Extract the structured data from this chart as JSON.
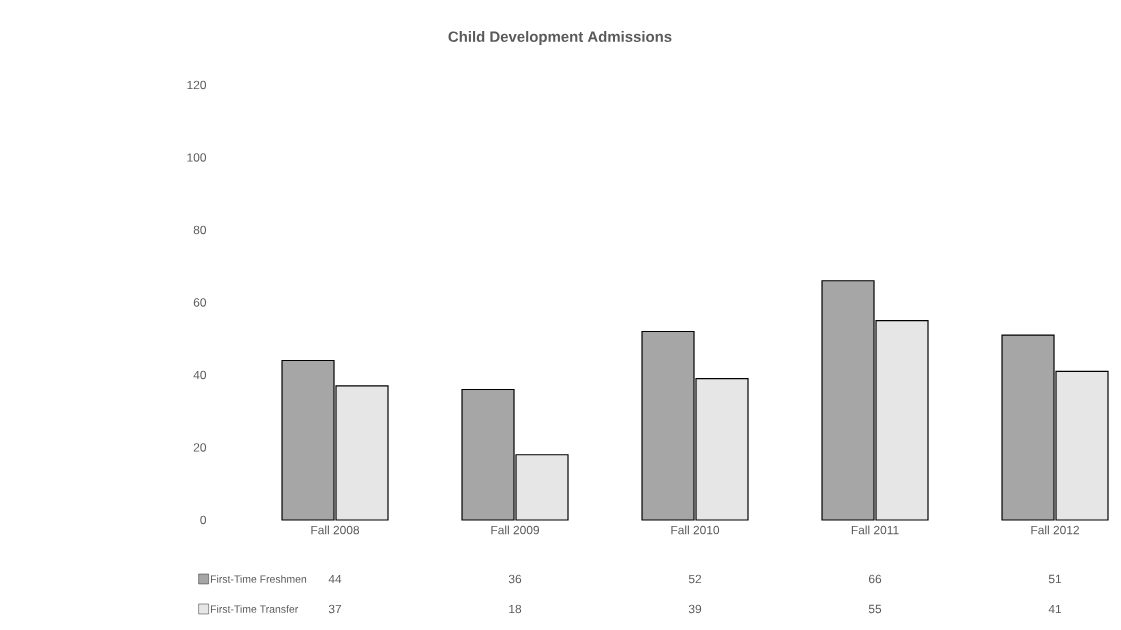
{
  "chart_data": {
    "type": "bar",
    "title": "Child Development Admissions",
    "categories": [
      "Fall 2008",
      "Fall 2009",
      "Fall 2010",
      "Fall 2011",
      "Fall 2012"
    ],
    "series": [
      {
        "name": "First-Time Freshmen",
        "color": "#a6a6a6",
        "values": [
          44,
          36,
          52,
          66,
          51
        ]
      },
      {
        "name": "First-Time Transfer",
        "color": "#e6e6e6",
        "values": [
          37,
          18,
          39,
          55,
          41
        ]
      }
    ],
    "ylim": [
      0,
      120
    ],
    "yticks": [
      0,
      20,
      40,
      60,
      80,
      100,
      120
    ],
    "grid": false,
    "legend": "bottom left",
    "data_labels": true
  }
}
